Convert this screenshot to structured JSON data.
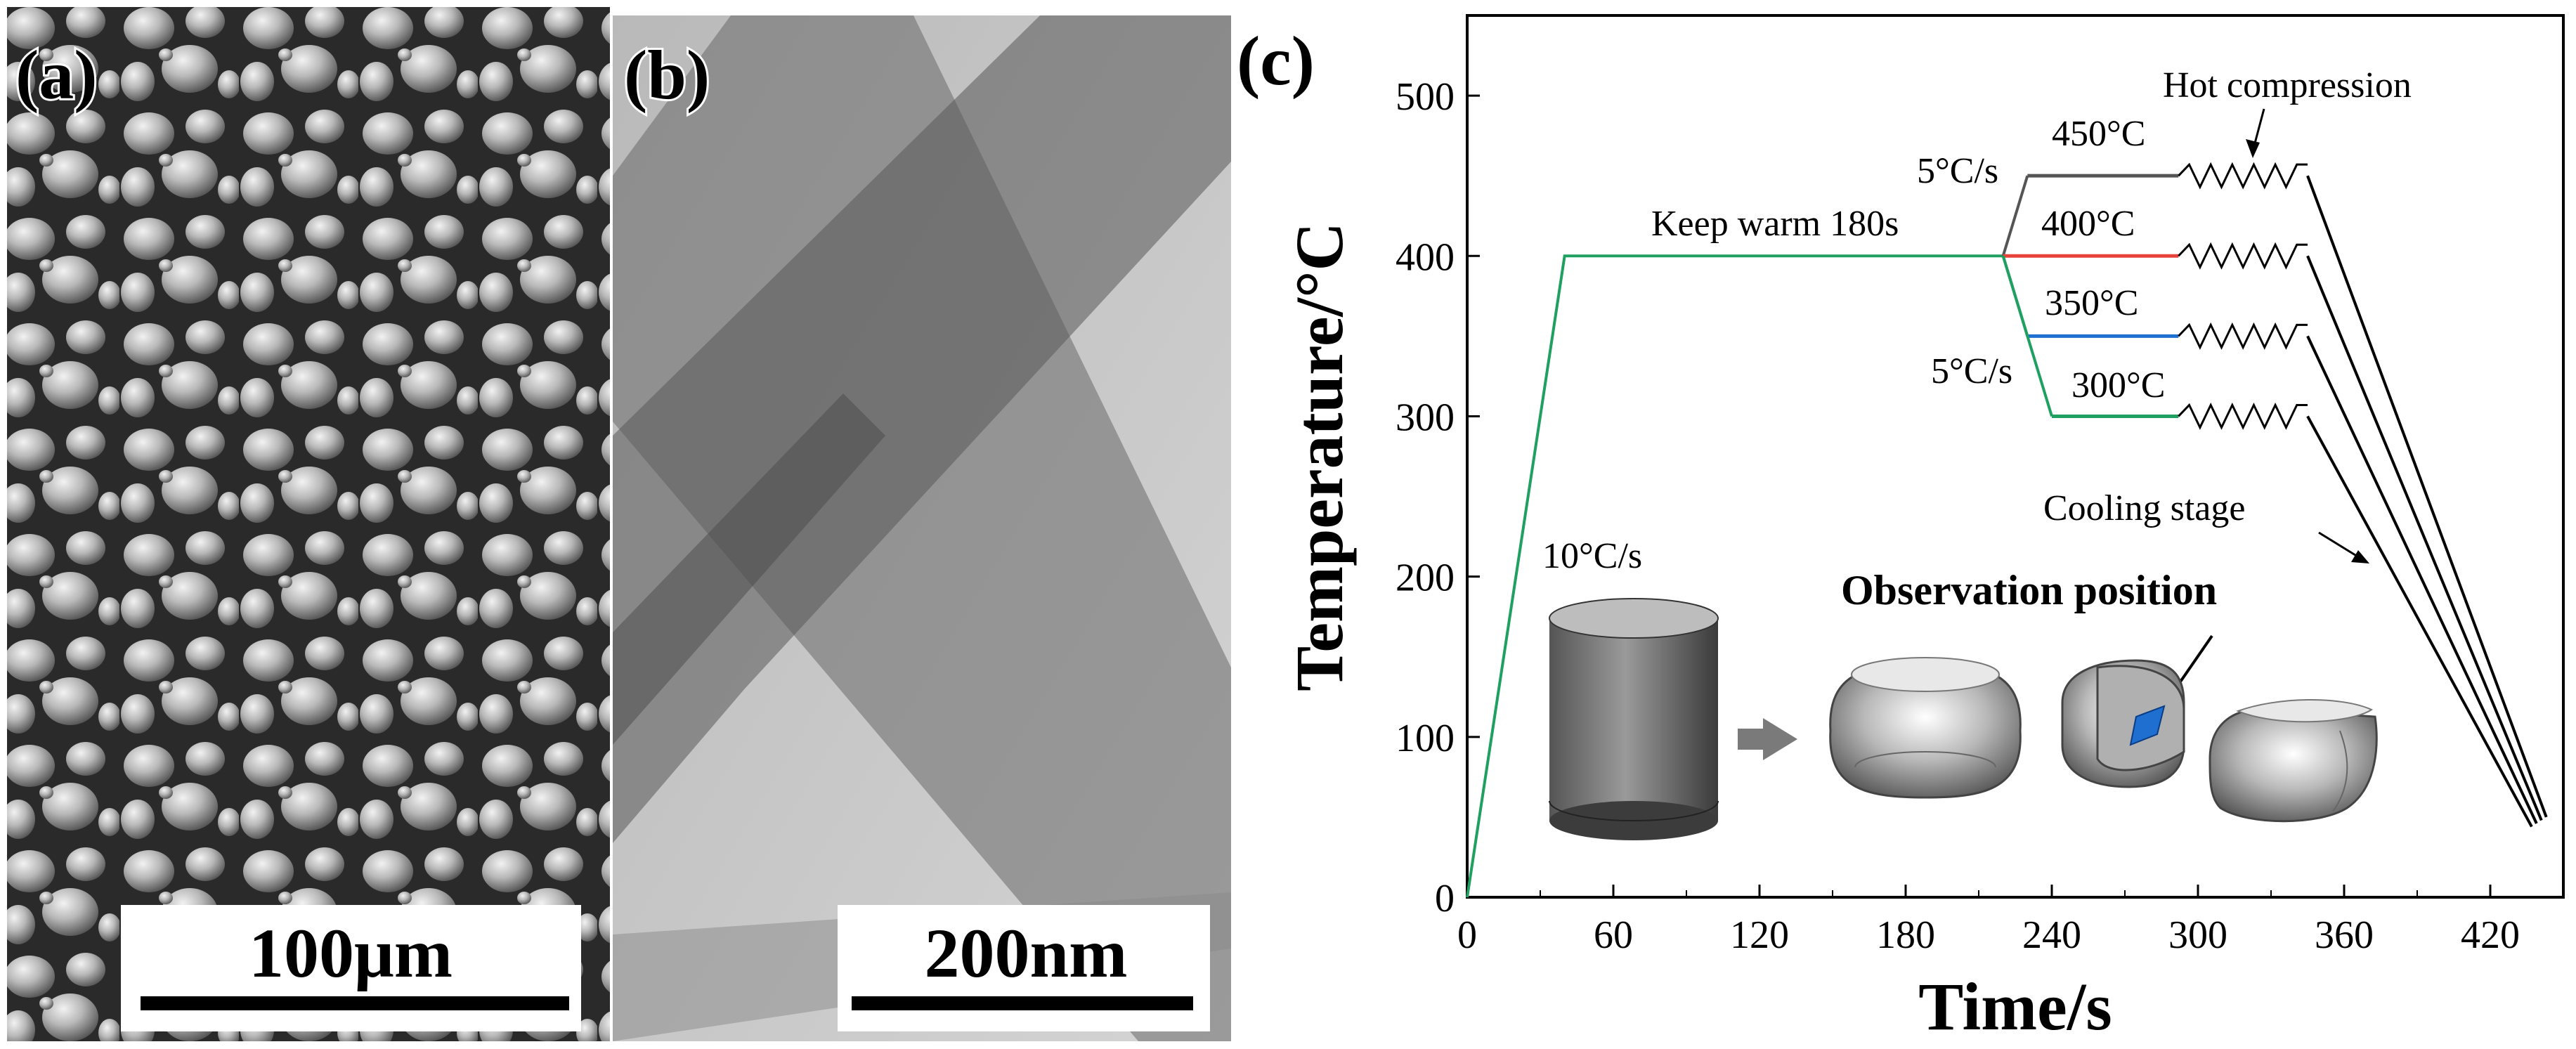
{
  "panels": {
    "a": {
      "label": "(a)",
      "scale_bar": "100μm"
    },
    "b": {
      "label": "(b)",
      "scale_bar": "200nm"
    },
    "c": {
      "label": "(c)"
    }
  },
  "chart_data": {
    "type": "line",
    "xlabel": "Time/s",
    "ylabel": "Temperature/°C",
    "xlim": [
      0,
      450
    ],
    "ylim": [
      0,
      550
    ],
    "xticks": [
      0,
      60,
      120,
      180,
      240,
      300,
      360,
      420
    ],
    "yticks": [
      0,
      100,
      200,
      300,
      400,
      500
    ],
    "grid": false,
    "series": [
      {
        "label": "450°C",
        "color": "#555555",
        "x": [
          0,
          40,
          220,
          230,
          292,
          345,
          443
        ],
        "y": [
          0,
          400,
          400,
          450,
          450,
          450,
          50
        ]
      },
      {
        "label": "400°C",
        "color": "#e8433b",
        "x": [
          0,
          40,
          220,
          292,
          345,
          441
        ],
        "y": [
          0,
          400,
          400,
          400,
          400,
          48
        ]
      },
      {
        "label": "350°C",
        "color": "#1f6fd1",
        "x": [
          0,
          40,
          220,
          230,
          292,
          345,
          439
        ],
        "y": [
          0,
          400,
          400,
          350,
          350,
          350,
          46
        ]
      },
      {
        "label": "300°C",
        "color": "#20a060",
        "x": [
          0,
          40,
          220,
          240,
          292,
          345,
          437
        ],
        "y": [
          0,
          400,
          400,
          300,
          300,
          300,
          44
        ]
      }
    ],
    "annotations": {
      "keep_warm": "Keep warm 180s",
      "heating_rate": "10°C/s",
      "rate_up": "5°C/s",
      "rate_down": "5°C/s",
      "hot_compression": "Hot compression",
      "cooling_stage": "Cooling stage",
      "observation": "Observation position"
    },
    "colors": {
      "green": "#20a060",
      "red": "#e8433b",
      "blue": "#1f6fd1",
      "black": "#000000"
    }
  }
}
